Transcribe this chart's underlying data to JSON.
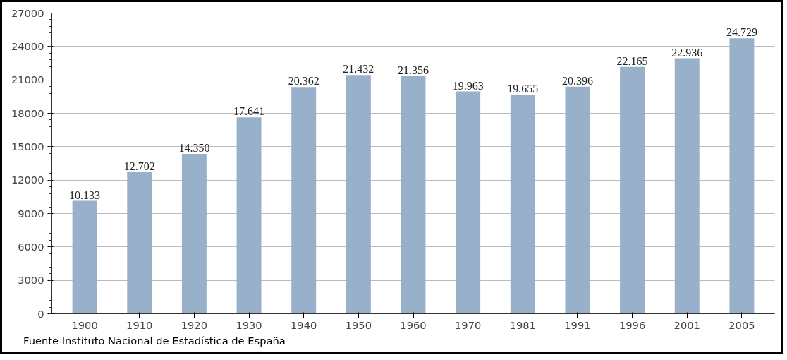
{
  "chart_data": {
    "type": "bar",
    "categories": [
      "1900",
      "1910",
      "1920",
      "1930",
      "1940",
      "1950",
      "1960",
      "1970",
      "1981",
      "1991",
      "1996",
      "2001",
      "2005"
    ],
    "values": [
      10133,
      12702,
      14350,
      17641,
      20362,
      21432,
      21356,
      19963,
      19655,
      20396,
      22165,
      22936,
      24729
    ],
    "value_labels": [
      "10.133",
      "12.702",
      "14.350",
      "17.641",
      "20.362",
      "21.432",
      "21.356",
      "19.963",
      "19.655",
      "20.396",
      "22.165",
      "22.936",
      "24.729"
    ],
    "color": "#98b0c9",
    "ylim": [
      0,
      27000
    ],
    "yticks": [
      0,
      3000,
      6000,
      9000,
      12000,
      15000,
      18000,
      21000,
      24000,
      27000
    ],
    "grid": "y",
    "annotations": [
      "Fuente Instituto Nacional de Estadística de España"
    ]
  }
}
